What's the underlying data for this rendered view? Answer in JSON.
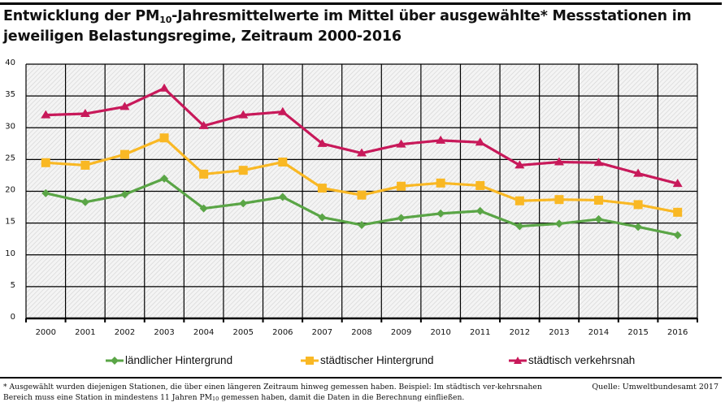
{
  "header": {
    "title_part1": "Entwicklung der PM",
    "title_sub": "10",
    "title_part2": "-Jahresmittelwerte im Mittel über ausgewählte* Messstationen im jeweiligen Belastungsregime, Zeitraum 2000-2016"
  },
  "footer": {
    "note_part1": "* Ausgewählt wurden diejenigen Stationen, die über einen längeren Zeitraum hinweg gemessen haben. Beispiel: Im städtisch ver-kehrsnahen Bereich muss eine Station in mindestens 11 Jahren PM",
    "note_sub": "10",
    "note_part2": " gemessen haben, damit die Daten in die Berechnung einfließen.",
    "source": "Quelle: Umweltbundesamt 2017"
  },
  "chart_data": {
    "type": "line",
    "title": "Entwicklung der PM10-Jahresmittelwerte im Mittel über ausgewählte* Messstationen im jeweiligen Belastungsregime, Zeitraum 2000-2016",
    "xlabel": "",
    "ylabel": "",
    "ylim": [
      0,
      40
    ],
    "yticks": [
      0,
      5,
      10,
      15,
      20,
      25,
      30,
      35,
      40
    ],
    "grid": true,
    "legend_position": "bottom",
    "x": [
      "2000",
      "2001",
      "2002",
      "2003",
      "2004",
      "2005",
      "2006",
      "2007",
      "2008",
      "2009",
      "2010",
      "2011",
      "2012",
      "2013",
      "2014",
      "2015",
      "2016"
    ],
    "series": [
      {
        "name": "ländlicher Hintergrund",
        "color": "#5aa546",
        "marker": "diamond",
        "values": [
          19.7,
          18.3,
          19.5,
          22.0,
          17.3,
          18.1,
          19.1,
          15.9,
          14.7,
          15.8,
          16.5,
          16.9,
          14.5,
          14.9,
          15.6,
          14.4,
          13.1
        ]
      },
      {
        "name": "städtischer Hintergrund",
        "color": "#f9b824",
        "marker": "square",
        "values": [
          24.5,
          24.1,
          25.8,
          28.4,
          22.7,
          23.3,
          24.6,
          20.5,
          19.4,
          20.8,
          21.3,
          20.9,
          18.5,
          18.7,
          18.6,
          17.9,
          16.7
        ]
      },
      {
        "name": "städtisch verkehrsnah",
        "color": "#c8195a",
        "marker": "triangle",
        "values": [
          32.0,
          32.2,
          33.3,
          36.2,
          30.3,
          32.0,
          32.5,
          27.5,
          26.0,
          27.4,
          28.0,
          27.7,
          24.1,
          24.6,
          24.5,
          22.8,
          21.2
        ]
      }
    ]
  }
}
